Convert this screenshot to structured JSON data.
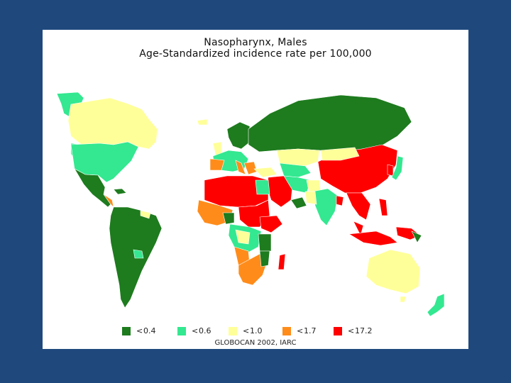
{
  "title": "Nasopharynx, Males",
  "subtitle": "Age-Standardized incidence rate per 100,000",
  "legend": [
    {
      "label": "<",
      "value": "0.4",
      "color": "#1e7b1e"
    },
    {
      "label": "<",
      "value": "0.6",
      "color": "#33e890"
    },
    {
      "label": "<",
      "value": "1.0",
      "color": "#ffff99"
    },
    {
      "label": "<",
      "value": "1.7",
      "color": "#ff8c1a"
    },
    {
      "label": "<",
      "value": "17.2",
      "color": "#ff0000"
    }
  ],
  "source": "GLOBOCAN 2002, IARC"
}
